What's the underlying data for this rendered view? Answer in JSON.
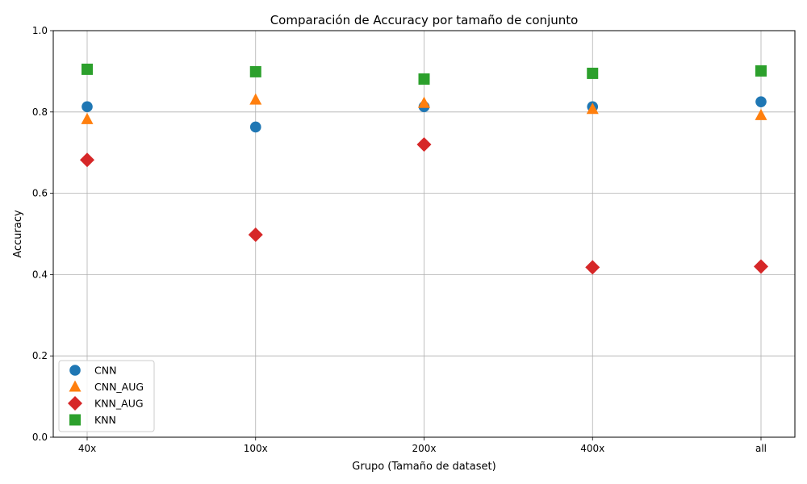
{
  "chart_data": {
    "type": "scatter",
    "title": "Comparación de Accuracy por tamaño de conjunto",
    "xlabel": "Grupo (Tamaño de dataset)",
    "ylabel": "Accuracy",
    "categories": [
      "40x",
      "100x",
      "200x",
      "400x",
      "all"
    ],
    "ylim": [
      0,
      1.0
    ],
    "yticks": [
      "0.0",
      "0.2",
      "0.4",
      "0.6",
      "0.8",
      "1.0"
    ],
    "grid": true,
    "legend_position": "lower-left",
    "series": [
      {
        "name": "CNN",
        "marker": "circle",
        "color": "#1f77b4",
        "values": [
          0.813,
          0.763,
          0.813,
          0.813,
          0.825
        ]
      },
      {
        "name": "CNN_AUG",
        "marker": "triangle",
        "color": "#ff7f0e",
        "values": [
          0.782,
          0.83,
          0.822,
          0.807,
          0.792
        ]
      },
      {
        "name": "KNN_AUG",
        "marker": "diamond",
        "color": "#d62728",
        "values": [
          0.682,
          0.498,
          0.72,
          0.418,
          0.42
        ]
      },
      {
        "name": "KNN",
        "marker": "square",
        "color": "#2ca02c",
        "values": [
          0.905,
          0.899,
          0.881,
          0.895,
          0.901
        ]
      }
    ]
  }
}
